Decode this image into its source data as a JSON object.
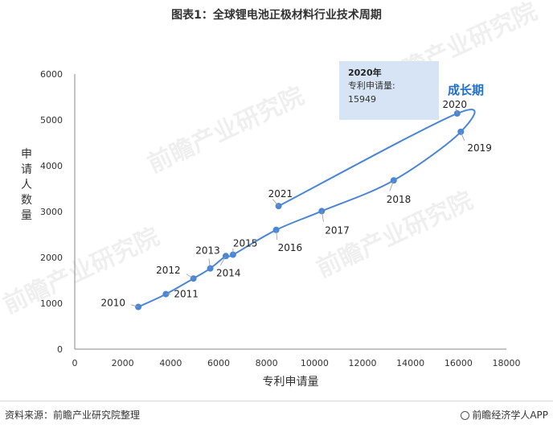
{
  "header": {
    "title": "图表1：全球锂电池正极材料行业技术周期"
  },
  "footer": {
    "source": "资料来源：前瞻产业研究院整理",
    "credit": "前瞻经济学人APP"
  },
  "watermark": "前瞻产业研究院",
  "colors": {
    "series": "#4a86d8",
    "callout_bg": "#d6e4f5",
    "phase_label": "#1f6fd1"
  },
  "chart_data": {
    "type": "line",
    "title": "图表1：全球锂电池正极材料行业技术周期",
    "xlabel": "专利申请量",
    "ylabel": "申请人数量",
    "xlim": [
      0,
      18000
    ],
    "ylim": [
      0,
      6000
    ],
    "x_ticks": [
      0,
      2000,
      4000,
      6000,
      8000,
      10000,
      12000,
      14000,
      16000,
      18000
    ],
    "y_ticks": [
      0,
      1000,
      2000,
      3000,
      4000,
      5000,
      6000
    ],
    "grid": false,
    "points": [
      {
        "label": "2010",
        "x": 2650,
        "y": 920
      },
      {
        "label": "2011",
        "x": 3800,
        "y": 1200
      },
      {
        "label": "2012",
        "x": 4950,
        "y": 1540
      },
      {
        "label": "2013",
        "x": 5650,
        "y": 1760
      },
      {
        "label": "2014",
        "x": 6300,
        "y": 2030
      },
      {
        "label": "2015",
        "x": 6600,
        "y": 2060
      },
      {
        "label": "2016",
        "x": 8400,
        "y": 2600
      },
      {
        "label": "2017",
        "x": 10300,
        "y": 3010
      },
      {
        "label": "2018",
        "x": 13300,
        "y": 3680
      },
      {
        "label": "2019",
        "x": 16100,
        "y": 4740
      },
      {
        "label": "2020",
        "x": 15949,
        "y": 5140
      },
      {
        "label": "2021",
        "x": 8500,
        "y": 3120
      }
    ],
    "annotations": {
      "phase": "成长期",
      "callout": {
        "year": "2020年",
        "label": "专利申请量:",
        "value": "15949"
      }
    }
  }
}
